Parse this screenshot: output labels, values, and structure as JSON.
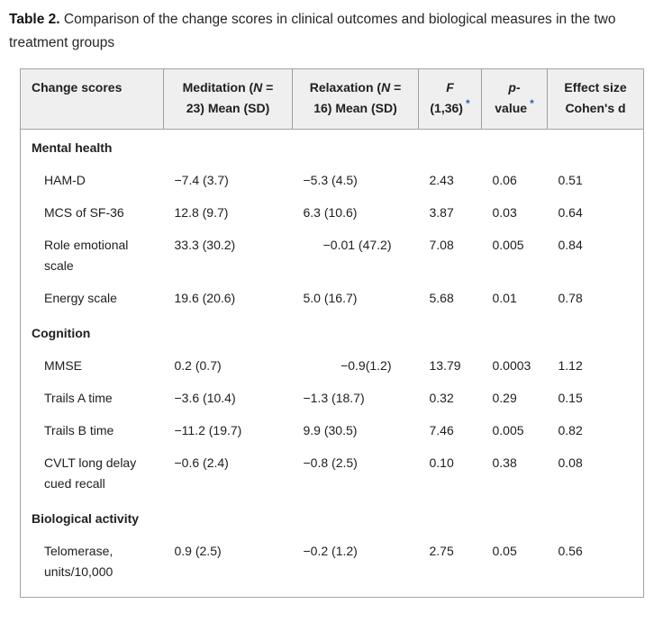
{
  "caption": {
    "label": "Table 2.",
    "text": " Comparison of the change scores in clinical outcomes and biological measures in the two treatment groups"
  },
  "accent_colors": {
    "footnote_link_blue": "#2e63a5",
    "header_background": "#efefef",
    "table_border": "#a2a2a2"
  },
  "header": {
    "col1": "Change scores",
    "col2": {
      "pre": "Meditation (",
      "n": "N",
      "eq": " =",
      "line2": "23) Mean (SD)"
    },
    "col3": {
      "pre": "Relaxation (",
      "n": "N",
      "eq": " =",
      "line2": "16) Mean (SD)"
    },
    "col4": {
      "line1": "F",
      "line2": "(1,36)",
      "asterisk": "*"
    },
    "col5": {
      "line1": "p-",
      "line2": "value",
      "asterisk": "*"
    },
    "col6": {
      "line1": "Effect size",
      "line2": "Cohen's d"
    }
  },
  "rows": [
    {
      "type": "section",
      "label": "Mental health"
    },
    {
      "type": "item",
      "label": "HAM-D",
      "meditation": "−7.4 (3.7)",
      "relaxation": "−5.3 (4.5)",
      "f": "2.43",
      "p": "0.06",
      "d": "0.51"
    },
    {
      "type": "item",
      "label": "MCS of SF-36",
      "meditation": "12.8 (9.7)",
      "relaxation": "6.3 (10.6)",
      "f": "3.87",
      "p": "0.03",
      "d": "0.64"
    },
    {
      "type": "item",
      "label": "Role emotional scale",
      "meditation": "33.3 (30.2)",
      "relaxation": "−0.01 (47.2)",
      "f": "7.08",
      "p": "0.005",
      "d": "0.84"
    },
    {
      "type": "item",
      "label": "Energy scale",
      "meditation": "19.6 (20.6)",
      "relaxation": "5.0 (16.7)",
      "f": "5.68",
      "p": "0.01",
      "d": "0.78"
    },
    {
      "type": "section",
      "label": "Cognition"
    },
    {
      "type": "item",
      "label": "MMSE",
      "meditation": "0.2 (0.7)",
      "relaxation": "−0.9(1.2)",
      "f": "13.79",
      "p": "0.0003",
      "d": "1.12"
    },
    {
      "type": "item",
      "label": "Trails A time",
      "meditation": "−3.6 (10.4)",
      "relaxation": "−1.3 (18.7)",
      "f": "0.32",
      "p": "0.29",
      "d": "0.15"
    },
    {
      "type": "item",
      "label": "Trails B time",
      "meditation": "−11.2 (19.7)",
      "relaxation": "9.9 (30.5)",
      "f": "7.46",
      "p": "0.005",
      "d": "0.82"
    },
    {
      "type": "item",
      "label": "CVLT long delay cued recall",
      "meditation": "−0.6 (2.4)",
      "relaxation": "−0.8 (2.5)",
      "f": "0.10",
      "p": "0.38",
      "d": "0.08"
    },
    {
      "type": "section",
      "label": "Biological activity"
    },
    {
      "type": "item",
      "label": "Telomerase, units/10,000",
      "meditation": "0.9 (2.5)",
      "relaxation": "−0.2 (1.2)",
      "f": "2.75",
      "p": "0.05",
      "d": "0.56"
    }
  ]
}
